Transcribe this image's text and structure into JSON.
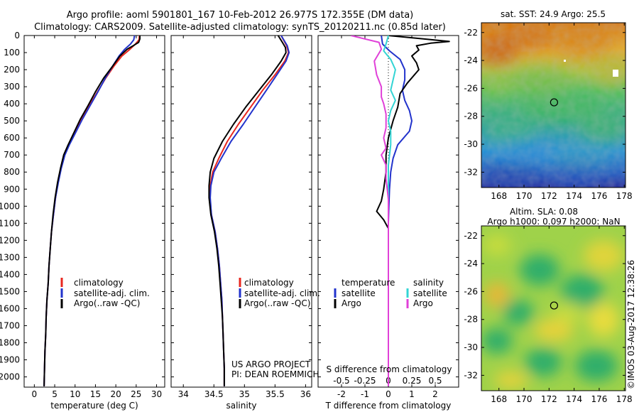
{
  "header": {
    "line1": "Argo profile: aoml 5901801_167 10-Feb-2012 26.977S 172.355E (DM data)",
    "line2": "Climatology: CARS2009. Satellite-adjusted climatology: synTS_20120211.nc (0.85d later)"
  },
  "depth_axis": {
    "ticks": [
      "0",
      "100",
      "200",
      "300",
      "400",
      "500",
      "600",
      "700",
      "800",
      "900",
      "1000",
      "1100",
      "1200",
      "1300",
      "1400",
      "1500",
      "1600",
      "1700",
      "1800",
      "1900",
      "2000"
    ]
  },
  "colors": {
    "climatology": "#e8271f",
    "satellite": "#2233cc",
    "argo": "#000000",
    "satellite_s": "#33d4d4",
    "argo_s": "#e040d8"
  },
  "chart_data": [
    {
      "type": "line",
      "id": "temperature",
      "xlabel": "temperature (deg C)",
      "xticks": [
        "0",
        "5",
        "10",
        "15",
        "20",
        "25",
        "30"
      ],
      "xlim": [
        -2.5,
        32
      ],
      "ylim": [
        2060,
        0
      ],
      "legend": [
        "climatology",
        "satellite-adj. clim.",
        "Argo(..raw -QC)"
      ],
      "series": [
        {
          "name": "climatology",
          "color": "#e8271f",
          "points": [
            [
              25.8,
              0
            ],
            [
              25.7,
              25
            ],
            [
              24.8,
              50
            ],
            [
              23.5,
              80
            ],
            [
              21.5,
              120
            ],
            [
              19.5,
              180
            ],
            [
              17.5,
              250
            ],
            [
              15.5,
              330
            ],
            [
              13.5,
              410
            ],
            [
              11.5,
              490
            ],
            [
              10.0,
              570
            ],
            [
              8.5,
              640
            ],
            [
              7.4,
              700
            ],
            [
              6.5,
              780
            ],
            [
              5.8,
              860
            ],
            [
              5.2,
              950
            ],
            [
              4.7,
              1050
            ],
            [
              4.2,
              1150
            ],
            [
              3.9,
              1250
            ],
            [
              3.6,
              1350
            ],
            [
              3.4,
              1450
            ],
            [
              3.1,
              1550
            ],
            [
              2.9,
              1650
            ],
            [
              2.8,
              1750
            ],
            [
              2.6,
              1850
            ],
            [
              2.5,
              1950
            ],
            [
              2.4,
              2055
            ]
          ]
        },
        {
          "name": "satellite-adj. clim.",
          "color": "#2233cc",
          "points": [
            [
              24.6,
              0
            ],
            [
              24.4,
              25
            ],
            [
              23.6,
              50
            ],
            [
              22.2,
              80
            ],
            [
              20.8,
              120
            ],
            [
              19.2,
              180
            ],
            [
              17.4,
              250
            ],
            [
              15.6,
              330
            ],
            [
              13.7,
              410
            ],
            [
              11.8,
              490
            ],
            [
              10.1,
              570
            ],
            [
              8.6,
              640
            ],
            [
              7.5,
              700
            ],
            [
              6.6,
              780
            ],
            [
              5.9,
              860
            ],
            [
              5.2,
              950
            ],
            [
              4.7,
              1050
            ],
            [
              4.2,
              1150
            ],
            [
              3.9,
              1250
            ],
            [
              3.6,
              1350
            ],
            [
              3.4,
              1450
            ],
            [
              3.1,
              1550
            ],
            [
              2.9,
              1650
            ],
            [
              2.8,
              1750
            ],
            [
              2.6,
              1850
            ],
            [
              2.5,
              1950
            ],
            [
              2.4,
              2055
            ]
          ]
        },
        {
          "name": "Argo(..raw -QC)",
          "color": "#000000",
          "points": [
            [
              25.9,
              0
            ],
            [
              25.9,
              20
            ],
            [
              25.6,
              40
            ],
            [
              24.6,
              55
            ],
            [
              22.8,
              80
            ],
            [
              21.0,
              120
            ],
            [
              19.2,
              180
            ],
            [
              17.0,
              250
            ],
            [
              15.0,
              330
            ],
            [
              13.2,
              410
            ],
            [
              11.3,
              490
            ],
            [
              9.7,
              570
            ],
            [
              8.3,
              640
            ],
            [
              7.2,
              700
            ],
            [
              6.4,
              780
            ],
            [
              5.7,
              860
            ],
            [
              5.1,
              950
            ],
            [
              4.6,
              1050
            ],
            [
              4.2,
              1150
            ],
            [
              3.9,
              1250
            ],
            [
              3.6,
              1350
            ],
            [
              3.4,
              1450
            ],
            [
              3.1,
              1550
            ],
            [
              2.9,
              1650
            ],
            [
              2.8,
              1750
            ],
            [
              2.6,
              1850
            ],
            [
              2.5,
              1950
            ],
            [
              2.4,
              2055
            ]
          ]
        }
      ]
    },
    {
      "type": "line",
      "id": "salinity",
      "xlabel": "salinity",
      "xticks": [
        "34",
        "34.5",
        "35",
        "35.5",
        "36"
      ],
      "xlim": [
        33.8,
        36.1
      ],
      "ylim": [
        2060,
        0
      ],
      "legend": [
        "climatology",
        "satellite-adj. clim.",
        "Argo(..raw -QC)"
      ],
      "annotation": [
        "US ARGO PROJECT",
        "PI: DEAN ROEMMICH"
      ],
      "series": [
        {
          "name": "climatology",
          "color": "#e8271f",
          "points": [
            [
              35.6,
              0
            ],
            [
              35.69,
              60
            ],
            [
              35.72,
              100
            ],
            [
              35.66,
              150
            ],
            [
              35.5,
              230
            ],
            [
              35.3,
              320
            ],
            [
              35.1,
              420
            ],
            [
              34.9,
              520
            ],
            [
              34.72,
              620
            ],
            [
              34.58,
              720
            ],
            [
              34.48,
              800
            ],
            [
              34.44,
              880
            ],
            [
              34.43,
              950
            ],
            [
              34.46,
              1050
            ],
            [
              34.52,
              1150
            ],
            [
              34.56,
              1250
            ],
            [
              34.59,
              1350
            ],
            [
              34.61,
              1450
            ],
            [
              34.63,
              1550
            ],
            [
              34.64,
              1650
            ],
            [
              34.65,
              1750
            ],
            [
              34.66,
              1850
            ],
            [
              34.67,
              1950
            ],
            [
              34.67,
              2055
            ]
          ]
        },
        {
          "name": "satellite-adj. clim.",
          "color": "#2233cc",
          "points": [
            [
              35.6,
              0
            ],
            [
              35.7,
              60
            ],
            [
              35.73,
              100
            ],
            [
              35.68,
              150
            ],
            [
              35.53,
              230
            ],
            [
              35.36,
              320
            ],
            [
              35.17,
              420
            ],
            [
              34.98,
              520
            ],
            [
              34.78,
              620
            ],
            [
              34.62,
              720
            ],
            [
              34.5,
              800
            ],
            [
              34.45,
              880
            ],
            [
              34.44,
              950
            ],
            [
              34.46,
              1050
            ],
            [
              34.52,
              1150
            ],
            [
              34.56,
              1250
            ],
            [
              34.59,
              1350
            ],
            [
              34.61,
              1450
            ],
            [
              34.63,
              1550
            ],
            [
              34.64,
              1650
            ],
            [
              34.65,
              1750
            ],
            [
              34.66,
              1850
            ],
            [
              34.67,
              1950
            ],
            [
              34.67,
              2055
            ]
          ]
        },
        {
          "name": "Argo(..raw -QC)",
          "color": "#000000",
          "points": [
            [
              35.55,
              0
            ],
            [
              35.62,
              40
            ],
            [
              35.67,
              70
            ],
            [
              35.68,
              100
            ],
            [
              35.6,
              150
            ],
            [
              35.44,
              230
            ],
            [
              35.24,
              320
            ],
            [
              35.02,
              420
            ],
            [
              34.82,
              520
            ],
            [
              34.64,
              620
            ],
            [
              34.5,
              720
            ],
            [
              34.44,
              800
            ],
            [
              34.42,
              880
            ],
            [
              34.42,
              950
            ],
            [
              34.45,
              1050
            ],
            [
              34.51,
              1150
            ],
            [
              34.55,
              1250
            ],
            [
              34.58,
              1350
            ],
            [
              34.6,
              1450
            ],
            [
              34.62,
              1550
            ],
            [
              34.64,
              1650
            ],
            [
              34.65,
              1750
            ],
            [
              34.66,
              1850
            ],
            [
              34.67,
              1950
            ],
            [
              34.67,
              2055
            ]
          ]
        }
      ]
    },
    {
      "type": "line",
      "id": "difference",
      "xlabel": "T difference from climatology",
      "xlabel_top": "S difference from climatology",
      "xticks": [
        "-2",
        "-1",
        "0",
        "1",
        "2"
      ],
      "xticks_s": [
        "-0.5",
        "-0.25",
        "0",
        "0.25",
        "0.5"
      ],
      "xlim": [
        -3,
        3
      ],
      "ylim": [
        2060,
        0
      ],
      "legend": {
        "temperature_header": "temperature",
        "salinity_header": "salinity",
        "labels": [
          "satellite",
          "Argo",
          "satellite",
          "Argo"
        ]
      },
      "series": [
        {
          "name": "T satellite",
          "color": "#2233cc",
          "points": [
            [
              -0.3,
              0
            ],
            [
              -0.25,
              50
            ],
            [
              0.05,
              90
            ],
            [
              0.5,
              140
            ],
            [
              0.7,
              200
            ],
            [
              0.7,
              260
            ],
            [
              0.6,
              320
            ],
            [
              0.7,
              380
            ],
            [
              0.9,
              440
            ],
            [
              1.0,
              500
            ],
            [
              0.9,
              560
            ],
            [
              0.4,
              640
            ],
            [
              0.2,
              720
            ],
            [
              0.1,
              800
            ],
            [
              0.05,
              900
            ],
            [
              0.02,
              1000
            ],
            [
              0.0,
              1100
            ],
            [
              0.0,
              2055
            ]
          ]
        },
        {
          "name": "T Argo",
          "color": "#000000",
          "points": [
            [
              0.0,
              0
            ],
            [
              1.5,
              20
            ],
            [
              2.6,
              35
            ],
            [
              1.8,
              45
            ],
            [
              1.2,
              60
            ],
            [
              1.3,
              85
            ],
            [
              1.0,
              120
            ],
            [
              1.2,
              160
            ],
            [
              1.3,
              200
            ],
            [
              0.8,
              280
            ],
            [
              0.5,
              340
            ],
            [
              0.4,
              420
            ],
            [
              0.2,
              500
            ],
            [
              0.0,
              600
            ],
            [
              -0.1,
              700
            ],
            [
              -0.1,
              800
            ],
            [
              -0.2,
              900
            ],
            [
              -0.3,
              970
            ],
            [
              -0.5,
              1030
            ],
            [
              -0.2,
              1080
            ],
            [
              0.0,
              1130
            ],
            [
              0.0,
              2055
            ]
          ]
        },
        {
          "name": "S satellite",
          "color": "#33d4d4",
          "points": [
            [
              0.0,
              0
            ],
            [
              -0.1,
              50
            ],
            [
              -0.2,
              90
            ],
            [
              0.1,
              140
            ],
            [
              0.3,
              200
            ],
            [
              0.2,
              260
            ],
            [
              0.1,
              320
            ],
            [
              0.3,
              380
            ],
            [
              0.1,
              440
            ],
            [
              0.0,
              500
            ],
            [
              0.1,
              560
            ],
            [
              0.1,
              640
            ],
            [
              0.0,
              760
            ],
            [
              0.0,
              2055
            ]
          ]
        },
        {
          "name": "S Argo",
          "color": "#e040d8",
          "points": [
            [
              -1.6,
              0
            ],
            [
              -0.4,
              40
            ],
            [
              -0.3,
              80
            ],
            [
              -0.6,
              150
            ],
            [
              -0.5,
              230
            ],
            [
              -0.3,
              300
            ],
            [
              -0.3,
              360
            ],
            [
              -0.2,
              400
            ],
            [
              -0.1,
              460
            ],
            [
              -0.1,
              540
            ],
            [
              -0.2,
              600
            ],
            [
              -0.1,
              660
            ],
            [
              -0.3,
              700
            ],
            [
              -0.1,
              760
            ],
            [
              -0.1,
              840
            ],
            [
              -0.05,
              900
            ],
            [
              0.0,
              960
            ],
            [
              0.0,
              2055
            ]
          ]
        }
      ]
    },
    {
      "type": "heatmap",
      "id": "sst_map",
      "title": "sat. SST: 24.9 Argo: 25.5",
      "xticks": [
        "168",
        "170",
        "172",
        "174",
        "176",
        "178"
      ],
      "yticks": [
        "-22",
        "-24",
        "-26",
        "-28",
        "-30",
        "-32"
      ],
      "xlim": [
        166.6,
        178.1
      ],
      "ylim": [
        -33.1,
        -21.3
      ],
      "float_position": [
        172.4,
        -27.0
      ]
    },
    {
      "type": "heatmap",
      "id": "sla_map",
      "title_lines": [
        "Altim. SLA: 0.08",
        "Argo h1000: 0.097 h2000: NaN"
      ],
      "xticks": [
        "168",
        "170",
        "172",
        "174",
        "176",
        "178"
      ],
      "yticks": [
        "-22",
        "-24",
        "-26",
        "-28",
        "-30",
        "-32"
      ],
      "xlim": [
        166.6,
        178.1
      ],
      "ylim": [
        -33.1,
        -21.3
      ],
      "float_position": [
        172.4,
        -27.0
      ]
    }
  ],
  "credit": "©IMOS 03-Aug-2017 12:38:26"
}
